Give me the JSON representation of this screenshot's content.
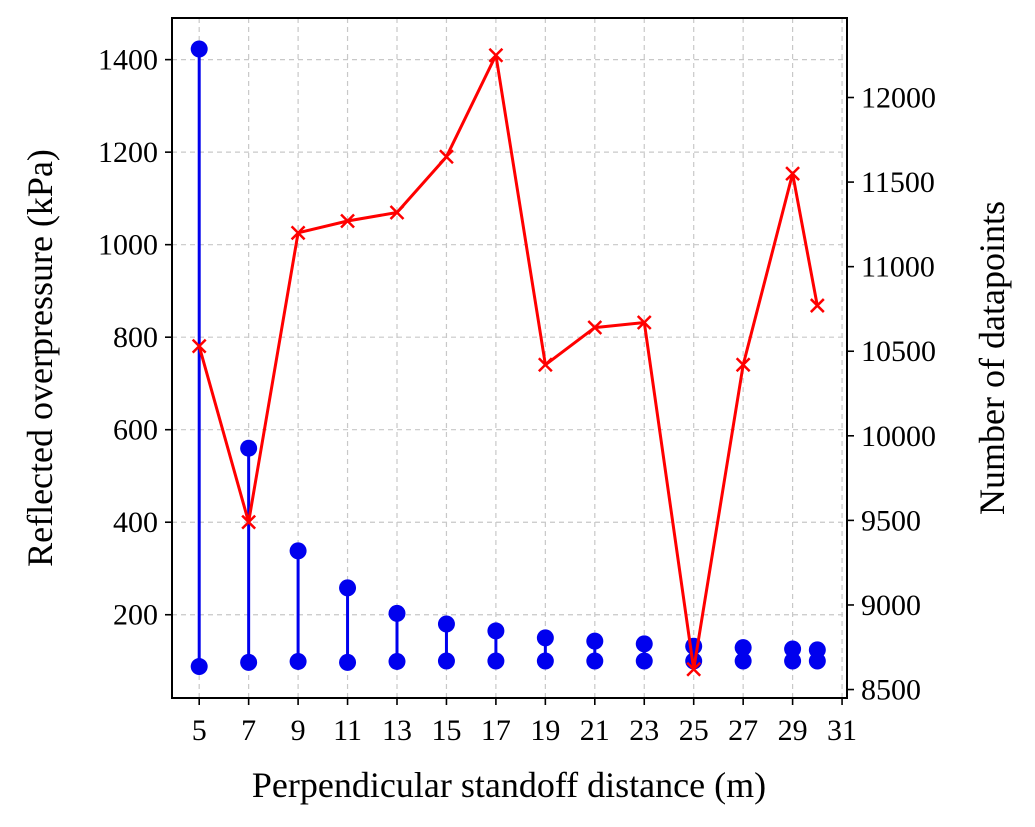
{
  "chart_data": {
    "type": "line",
    "xlabel": "Perpendicular standoff distance (m)",
    "ylabel_left": "Reflected overpressure (kPa)",
    "ylabel_right": "Number of datapoints",
    "xlim": [
      3.9,
      31.2
    ],
    "ylim_left": [
      20,
      1490
    ],
    "ylim_right": [
      8450,
      12470
    ],
    "x_ticks": [
      5,
      7,
      9,
      11,
      13,
      15,
      17,
      19,
      21,
      23,
      25,
      27,
      29,
      31
    ],
    "y_left_ticks": [
      200,
      400,
      600,
      800,
      1000,
      1200,
      1400
    ],
    "y_right_ticks": [
      8500,
      9000,
      9500,
      10000,
      10500,
      11000,
      11500,
      12000
    ],
    "grid": true,
    "series": [
      {
        "kind": "range",
        "axis": "left",
        "color": "#0000ee",
        "x": [
          5,
          7,
          9,
          11,
          13,
          15,
          17,
          19,
          21,
          23,
          25,
          27,
          29,
          30
        ],
        "low": [
          88,
          97,
          99,
          97,
          99,
          100,
          100,
          100,
          100,
          100,
          100,
          100,
          100,
          100
        ],
        "high": [
          1423,
          560,
          338,
          258,
          203,
          180,
          165,
          150,
          143,
          137,
          132,
          129,
          126,
          124
        ]
      },
      {
        "kind": "line",
        "axis": "right",
        "color": "#ff0000",
        "marker": "x",
        "x": [
          5,
          7,
          9,
          11,
          13,
          15,
          17,
          19,
          21,
          23,
          25,
          27,
          29,
          30
        ],
        "values": [
          10530,
          9490,
          11200,
          11270,
          11320,
          11650,
          12250,
          10420,
          10640,
          10670,
          8620,
          10420,
          11550,
          10770
        ]
      }
    ]
  }
}
